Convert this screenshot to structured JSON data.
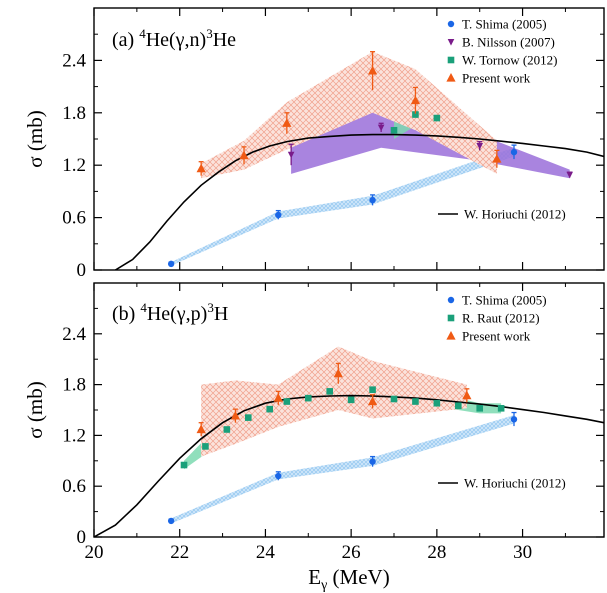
{
  "chart_data": [
    {
      "type": "scatter",
      "panel_label": {
        "prefix": "(a) ",
        "sup1": "4",
        "mid": "He(γ,n)",
        "sup2": "3",
        "suffix": "He"
      },
      "ylabel": "σ (mb)",
      "xlim": [
        20,
        31.9
      ],
      "ylim": [
        0,
        3.0
      ],
      "yticks": [
        0,
        0.6,
        1.2,
        1.8,
        2.4
      ],
      "ytick_labels": [
        "0",
        "0.6",
        "1.2",
        "1.8",
        "2.4"
      ],
      "legend_position": "top-right",
      "series": [
        {
          "name": "T. Shima (2005)",
          "marker": "circle",
          "color": "#1a66e6",
          "x": [
            21.8,
            24.3,
            26.5,
            29.8
          ],
          "y": [
            0.07,
            0.63,
            0.8,
            1.35
          ],
          "yerr": [
            0.02,
            0.05,
            0.06,
            0.08
          ],
          "band": {
            "color": "#a8d4f5",
            "x": [
              21.8,
              24.3,
              26.5,
              29.8
            ],
            "lower": [
              0.05,
              0.59,
              0.75,
              1.3
            ],
            "upper": [
              0.09,
              0.67,
              0.85,
              1.4
            ]
          }
        },
        {
          "name": "B. Nilsson (2007)",
          "marker": "triangle-down",
          "color": "#7a1b8a",
          "x": [
            24.6,
            26.7,
            29.0,
            31.1
          ],
          "y": [
            1.32,
            1.63,
            1.42,
            1.09
          ],
          "yerr": [
            0.12,
            0.05,
            0.05,
            0.03
          ],
          "band": {
            "color": "#9a6fd9",
            "x": [
              24.6,
              26.7,
              29.0,
              31.1
            ],
            "lower": [
              1.1,
              1.4,
              1.25,
              1.05
            ],
            "upper": [
              1.7,
              1.9,
              1.55,
              1.15
            ]
          }
        },
        {
          "name": "W. Tornow (2012)",
          "marker": "square",
          "color": "#1aa07a",
          "x": [
            27.0,
            27.5,
            28.0
          ],
          "y": [
            1.6,
            1.78,
            1.74
          ],
          "yerr": [
            0.02,
            0.02,
            0.02
          ],
          "band": {
            "color": "#7cd9b0",
            "x": [
              27.0,
              27.5,
              28.0
            ],
            "lower": [
              1.5,
              1.65,
              1.68
            ],
            "upper": [
              1.7,
              1.92,
              1.8
            ]
          }
        },
        {
          "name": "Present work",
          "marker": "triangle-up",
          "color": "#f05a14",
          "x": [
            22.5,
            23.5,
            24.5,
            26.5,
            27.5,
            29.4
          ],
          "y": [
            1.16,
            1.31,
            1.68,
            2.28,
            1.94,
            1.27
          ],
          "yerr": [
            0.08,
            0.1,
            0.12,
            0.22,
            0.15,
            0.1
          ],
          "band": {
            "color": "#f5a08a",
            "x": [
              22.5,
              23.5,
              24.5,
              26.5,
              27.5,
              29.4
            ],
            "lower": [
              1.05,
              1.15,
              1.38,
              1.8,
              1.6,
              1.1
            ],
            "upper": [
              1.22,
              1.48,
              1.92,
              2.5,
              2.3,
              1.48
            ]
          }
        }
      ],
      "theory": {
        "name": "W. Horiuchi (2012)",
        "color": "#000000",
        "x": [
          20.5,
          20.9,
          21.3,
          21.7,
          22.1,
          22.5,
          22.9,
          23.3,
          23.7,
          24.1,
          24.5,
          25.0,
          25.5,
          26.0,
          26.5,
          27.0,
          27.5,
          28.0,
          28.5,
          29.0,
          29.5,
          30.0,
          30.5,
          31.0,
          31.5,
          31.9
        ],
        "y": [
          0.0,
          0.12,
          0.32,
          0.56,
          0.78,
          0.97,
          1.12,
          1.25,
          1.35,
          1.42,
          1.47,
          1.51,
          1.53,
          1.545,
          1.55,
          1.55,
          1.545,
          1.535,
          1.52,
          1.5,
          1.475,
          1.45,
          1.42,
          1.39,
          1.35,
          1.3
        ]
      }
    },
    {
      "type": "scatter",
      "panel_label": {
        "prefix": "(b) ",
        "sup1": "4",
        "mid": "He(γ,p)",
        "sup2": "3",
        "suffix": "H"
      },
      "ylabel": "σ (mb)",
      "xlabel_main": "E",
      "xlabel_sub": "γ",
      "xlabel_unit": " (MeV)",
      "xlim": [
        20,
        31.9
      ],
      "ylim": [
        0,
        3.0
      ],
      "yticks": [
        0,
        0.6,
        1.2,
        1.8,
        2.4
      ],
      "ytick_labels": [
        "0",
        "0.6",
        "1.2",
        "1.8",
        "2.4"
      ],
      "xticks": [
        20,
        22,
        24,
        26,
        28,
        30
      ],
      "xtick_labels": [
        "20",
        "22",
        "24",
        "26",
        "28",
        "30"
      ],
      "legend_position": "top-right",
      "series": [
        {
          "name": "T. Shima (2005)",
          "marker": "circle",
          "color": "#1a66e6",
          "x": [
            21.8,
            24.3,
            26.5,
            29.8
          ],
          "y": [
            0.19,
            0.72,
            0.89,
            1.39
          ],
          "yerr": [
            0.02,
            0.05,
            0.06,
            0.08
          ],
          "band": {
            "color": "#a8d4f5",
            "x": [
              21.8,
              24.3,
              26.5,
              29.8
            ],
            "lower": [
              0.16,
              0.68,
              0.84,
              1.34
            ],
            "upper": [
              0.22,
              0.76,
              0.94,
              1.44
            ]
          }
        },
        {
          "name": "R. Raut (2012)",
          "marker": "square",
          "color": "#1aa07a",
          "x": [
            22.1,
            22.6,
            23.1,
            23.6,
            24.1,
            24.5,
            25.0,
            25.5,
            26.0,
            26.5,
            27.0,
            27.5,
            28.0,
            28.5,
            29.0,
            29.5
          ],
          "y": [
            0.85,
            1.07,
            1.27,
            1.41,
            1.51,
            1.6,
            1.64,
            1.72,
            1.62,
            1.74,
            1.63,
            1.6,
            1.58,
            1.55,
            1.52,
            1.52
          ],
          "yerr": [
            0.02,
            0.02,
            0.02,
            0.02,
            0.02,
            0.02,
            0.02,
            0.02,
            0.02,
            0.02,
            0.02,
            0.02,
            0.02,
            0.02,
            0.02,
            0.02
          ],
          "band": {
            "color": "#7cd9b0",
            "x": [
              22.1,
              22.6,
              23.1,
              23.6,
              24.1,
              24.5,
              25.0,
              25.5,
              26.0,
              26.5,
              27.0,
              27.5,
              28.0,
              28.5,
              29.0,
              29.5
            ],
            "lower": [
              0.8,
              0.98,
              1.18,
              1.32,
              1.43,
              1.52,
              1.56,
              1.62,
              1.56,
              1.62,
              1.55,
              1.52,
              1.52,
              1.5,
              1.46,
              1.46
            ],
            "upper": [
              0.9,
              1.16,
              1.36,
              1.5,
              1.6,
              1.7,
              1.74,
              1.8,
              1.76,
              1.82,
              1.74,
              1.7,
              1.68,
              1.64,
              1.58,
              1.58
            ]
          }
        },
        {
          "name": "Present work",
          "marker": "triangle-up",
          "color": "#f05a14",
          "x": [
            22.5,
            23.3,
            24.3,
            25.7,
            26.5,
            28.7
          ],
          "y": [
            1.27,
            1.43,
            1.64,
            1.93,
            1.6,
            1.67
          ],
          "yerr": [
            0.08,
            0.08,
            0.08,
            0.12,
            0.08,
            0.08
          ],
          "band": {
            "color": "#f5a08a",
            "x": [
              22.5,
              23.3,
              24.3,
              25.7,
              26.5,
              28.7
            ],
            "lower": [
              0.95,
              1.1,
              1.3,
              1.5,
              1.4,
              1.52
            ],
            "upper": [
              1.8,
              1.85,
              1.8,
              2.25,
              2.08,
              1.8
            ]
          }
        }
      ],
      "theory": {
        "name": "W. Horiuchi (2012)",
        "color": "#000000",
        "x": [
          20.0,
          20.5,
          21.0,
          21.5,
          22.0,
          22.5,
          23.0,
          23.5,
          24.0,
          24.5,
          25.0,
          25.5,
          26.0,
          26.5,
          27.0,
          27.5,
          28.0,
          28.5,
          29.0,
          29.5,
          30.0,
          30.5,
          31.0,
          31.5,
          31.9
        ],
        "y": [
          0.0,
          0.14,
          0.38,
          0.66,
          0.93,
          1.16,
          1.35,
          1.49,
          1.58,
          1.63,
          1.655,
          1.665,
          1.67,
          1.665,
          1.655,
          1.64,
          1.62,
          1.595,
          1.57,
          1.54,
          1.505,
          1.47,
          1.43,
          1.39,
          1.35
        ]
      }
    }
  ]
}
